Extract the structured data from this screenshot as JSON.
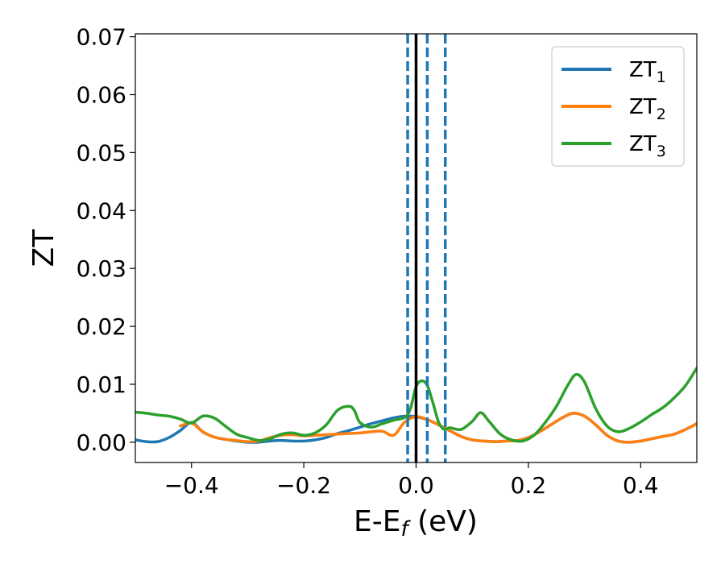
{
  "chart_data": {
    "type": "line",
    "xlabel": "E-E",
    "xlabel_subscript": "f",
    "xlabel_suffix": " (eV)",
    "ylabel": "ZT",
    "xlim": [
      -0.5,
      0.5
    ],
    "ylim": [
      -0.0035,
      0.0705
    ],
    "xticks": [
      -0.4,
      -0.2,
      0.0,
      0.2,
      0.4
    ],
    "xtick_labels": [
      "−0.4",
      "−0.2",
      "0.0",
      "0.2",
      "0.4"
    ],
    "yticks": [
      0.0,
      0.01,
      0.02,
      0.03,
      0.04,
      0.05,
      0.06,
      0.07
    ],
    "ytick_labels": [
      "0.00",
      "0.01",
      "0.02",
      "0.03",
      "0.04",
      "0.05",
      "0.06",
      "0.07"
    ],
    "grid": false,
    "legend": "top-right",
    "vertical_lines": [
      {
        "x": 0.0,
        "style": "solid",
        "color": "#000000"
      },
      {
        "x": -0.015,
        "style": "dashed",
        "color": "#1f77b4"
      },
      {
        "x": 0.02,
        "style": "dashed",
        "color": "#1f77b4"
      },
      {
        "x": 0.052,
        "style": "dashed",
        "color": "#1f77b4"
      }
    ],
    "series": [
      {
        "name": "ZT",
        "name_subscript": "1",
        "color": "#1f77b4",
        "x": [
          -0.5,
          -0.48,
          -0.46,
          -0.44,
          -0.42,
          -0.4,
          -0.38,
          -0.36,
          -0.34,
          -0.32,
          -0.3,
          -0.28,
          -0.26,
          -0.24,
          -0.22,
          -0.2,
          -0.18,
          -0.16,
          -0.14,
          -0.12,
          -0.1,
          -0.08,
          -0.06,
          -0.04,
          -0.02,
          0.0,
          0.02,
          0.04,
          0.06,
          0.08,
          0.1,
          0.12,
          0.14,
          0.16,
          0.18,
          0.2,
          0.22,
          0.24,
          0.26,
          0.28,
          0.3,
          0.32,
          0.34,
          0.36,
          0.38,
          0.4,
          0.42,
          0.44,
          0.46,
          0.48,
          0.5
        ],
        "values": [
          0.0004,
          0.0001,
          0.0001,
          0.0008,
          0.002,
          0.0034,
          0.0018,
          0.0009,
          0.0005,
          0.0002,
          0.0,
          0.0,
          0.0002,
          0.0003,
          0.0002,
          0.0002,
          0.0004,
          0.0008,
          0.0015,
          0.002,
          0.0026,
          0.0032,
          0.0037,
          0.0042,
          0.0045,
          0.0044,
          0.0039,
          0.003,
          0.002,
          0.001,
          0.0004,
          0.0002,
          0.0001,
          0.0002,
          0.0003,
          0.0008,
          0.0018,
          0.003,
          0.0042,
          0.005,
          0.0045,
          0.003,
          0.0012,
          0.0002,
          0.0,
          0.0002,
          0.0006,
          0.001,
          0.0014,
          0.0022,
          0.0032
        ]
      },
      {
        "name": "ZT",
        "name_subscript": "2",
        "color": "#ff7f0e",
        "x": [
          -0.42,
          -0.4,
          -0.38,
          -0.36,
          -0.34,
          -0.32,
          -0.3,
          -0.28,
          -0.26,
          -0.24,
          -0.22,
          -0.2,
          -0.18,
          -0.16,
          -0.14,
          -0.12,
          -0.1,
          -0.08,
          -0.06,
          -0.04,
          -0.02,
          0.0,
          0.02,
          0.04,
          0.06,
          0.08,
          0.1,
          0.12,
          0.14,
          0.16,
          0.18,
          0.2,
          0.22,
          0.24,
          0.26,
          0.28,
          0.3,
          0.32,
          0.34,
          0.36,
          0.38,
          0.4,
          0.42,
          0.44,
          0.46,
          0.48,
          0.5
        ],
        "values": [
          0.0028,
          0.0033,
          0.0018,
          0.0009,
          0.0005,
          0.0003,
          0.0001,
          0.0002,
          0.0008,
          0.0012,
          0.0013,
          0.0011,
          0.0012,
          0.0013,
          0.0014,
          0.0015,
          0.0016,
          0.0018,
          0.0019,
          0.0012,
          0.0035,
          0.0044,
          0.0039,
          0.003,
          0.002,
          0.001,
          0.0004,
          0.0002,
          0.0001,
          0.0002,
          0.0003,
          0.0008,
          0.0018,
          0.003,
          0.0042,
          0.005,
          0.0045,
          0.003,
          0.0012,
          0.0002,
          0.0,
          0.0002,
          0.0006,
          0.001,
          0.0014,
          0.0022,
          0.0032
        ]
      },
      {
        "name": "ZT",
        "name_subscript": "3",
        "color": "#2ca02c",
        "x": [
          -0.5,
          -0.48,
          -0.46,
          -0.44,
          -0.42,
          -0.4,
          -0.38,
          -0.36,
          -0.34,
          -0.32,
          -0.3,
          -0.28,
          -0.26,
          -0.24,
          -0.22,
          -0.2,
          -0.18,
          -0.16,
          -0.14,
          -0.12,
          -0.11,
          -0.1,
          -0.08,
          -0.06,
          -0.04,
          -0.02,
          -0.01,
          0.0,
          0.01,
          0.02,
          0.03,
          0.04,
          0.05,
          0.06,
          0.08,
          0.1,
          0.115,
          0.13,
          0.15,
          0.17,
          0.19,
          0.21,
          0.23,
          0.25,
          0.27,
          0.285,
          0.3,
          0.32,
          0.34,
          0.36,
          0.38,
          0.4,
          0.42,
          0.44,
          0.46,
          0.48,
          0.5
        ],
        "values": [
          0.0052,
          0.005,
          0.0047,
          0.0045,
          0.004,
          0.0033,
          0.0045,
          0.0042,
          0.0028,
          0.0014,
          0.0008,
          0.0003,
          0.0006,
          0.0014,
          0.0016,
          0.0012,
          0.0016,
          0.003,
          0.0055,
          0.0062,
          0.0055,
          0.0034,
          0.0026,
          0.0032,
          0.0038,
          0.0043,
          0.0058,
          0.0096,
          0.0106,
          0.0098,
          0.0068,
          0.0035,
          0.0022,
          0.0025,
          0.0022,
          0.0036,
          0.0051,
          0.0036,
          0.0014,
          0.0004,
          0.0002,
          0.0012,
          0.0034,
          0.0062,
          0.0098,
          0.0117,
          0.0104,
          0.0058,
          0.0028,
          0.0018,
          0.0024,
          0.0035,
          0.0048,
          0.006,
          0.0077,
          0.0098,
          0.0128
        ]
      }
    ]
  }
}
